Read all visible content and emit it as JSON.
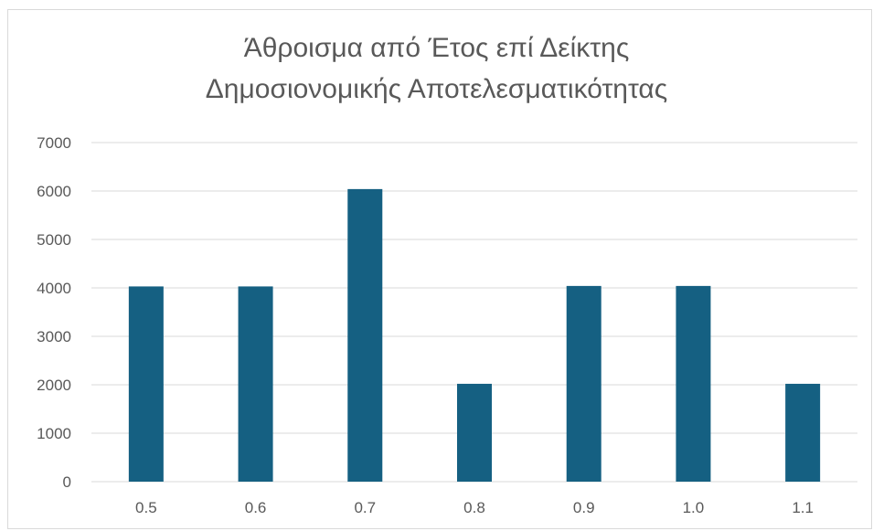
{
  "chart_data": {
    "type": "bar",
    "title_lines": [
      "Άθροισμα από Έτος επί Δείκτης",
      "Δημοσιονομικής Αποτελεσματικότητας"
    ],
    "categories": [
      "0.5",
      "0.6",
      "0.7",
      "0.8",
      "0.9",
      "1.0",
      "1.1"
    ],
    "values": [
      4030,
      4030,
      6040,
      2020,
      4040,
      4040,
      2020
    ],
    "ylim": [
      0,
      7000
    ],
    "yticks": [
      0,
      1000,
      2000,
      3000,
      4000,
      5000,
      6000,
      7000
    ],
    "grid": true,
    "legend": "none",
    "colors": {
      "bar": "#156082",
      "grid": "#d9d9d9",
      "text": "#595959"
    }
  }
}
